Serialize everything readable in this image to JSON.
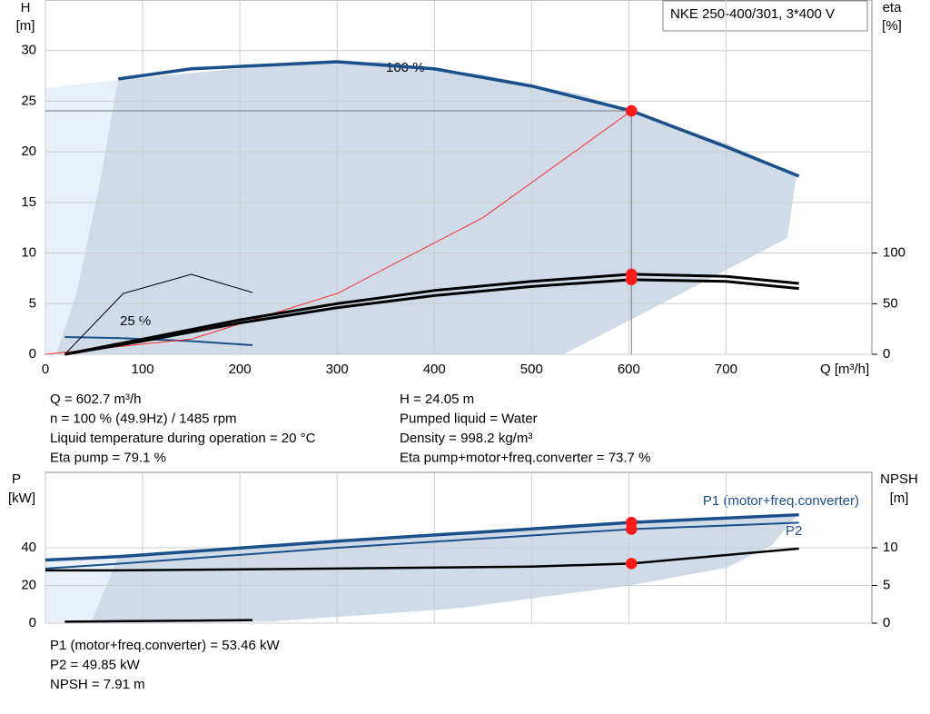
{
  "title": "NKE 250-400/301, 3*400 V",
  "chart_data": [
    {
      "type": "line",
      "ylabel": "H",
      "yunit": "[m]",
      "y2label": "eta",
      "y2unit": "[%]",
      "xlabel": "Q [m³/h]",
      "xlim": [
        0,
        850
      ],
      "xticks": [
        0,
        100,
        200,
        300,
        400,
        500,
        600,
        700
      ],
      "ylim": [
        0,
        35
      ],
      "yticks": [
        0,
        5,
        10,
        15,
        20,
        25,
        30
      ],
      "y2lim": [
        0,
        350
      ],
      "y2ticks": [
        0,
        50,
        100
      ],
      "grid": true,
      "operating_x": 602.7,
      "series": [
        {
          "name": "100 %",
          "color": "#1a4f8a",
          "width": 3.5,
          "x": [
            75,
            150,
            300,
            400,
            500,
            602.7,
            700,
            775
          ],
          "values": [
            27.2,
            28.2,
            28.9,
            28.2,
            26.5,
            24.05,
            20.5,
            17.6
          ]
        },
        {
          "name": "25 %",
          "color": "#1a4f8a",
          "width": 2,
          "x": [
            20,
            75,
            150,
            213
          ],
          "values": [
            1.7,
            1.6,
            1.3,
            0.9
          ]
        },
        {
          "color": "#ff3030",
          "width": 1,
          "x": [
            0,
            150,
            300,
            450,
            602.7
          ],
          "values": [
            0,
            1.5,
            6,
            13.5,
            24.05
          ]
        },
        {
          "color": "#000",
          "width": 3,
          "axis": "y2",
          "x": [
            20,
            100,
            200,
            300,
            400,
            500,
            602.7,
            700,
            775
          ],
          "values": [
            0,
            15,
            34,
            50,
            63,
            72,
            79.1,
            77,
            70
          ]
        },
        {
          "color": "#000",
          "width": 3,
          "axis": "y2",
          "x": [
            20,
            100,
            200,
            300,
            400,
            500,
            602.7,
            700,
            775
          ],
          "values": [
            0,
            13,
            31,
            46,
            58,
            67,
            73.7,
            72,
            65
          ]
        },
        {
          "color": "#000",
          "width": 1,
          "axis": "y2",
          "x": [
            20,
            80,
            150,
            213
          ],
          "values": [
            0,
            60,
            79,
            61
          ]
        }
      ],
      "labels": [
        "100 %",
        "25 %"
      ],
      "info": [
        "Q = 602.7 m³/h",
        "n = 100 % (49.9Hz) / 1485 rpm",
        "Liquid temperature during operation = 20 °C",
        "Eta pump = 79.1 %",
        "H = 24.05 m",
        "Pumped liquid = Water",
        "Density = 998.2 kg/m³",
        "Eta pump+motor+freq.converter = 73.7 %"
      ]
    },
    {
      "type": "line",
      "ylabel": "P",
      "yunit": "[kW]",
      "y2label": "NPSH",
      "y2unit": "[m]",
      "xlim": [
        0,
        850
      ],
      "xticks": [
        0,
        100,
        200,
        300,
        400,
        500,
        600,
        700
      ],
      "ylim": [
        0,
        80
      ],
      "yticks": [
        0,
        20,
        40
      ],
      "y2lim": [
        0,
        20
      ],
      "y2ticks": [
        0,
        5,
        10
      ],
      "grid": true,
      "operating_x": 602.7,
      "series": [
        {
          "name": "P1 (motor+freq.converter)",
          "color": "#1a4f8a",
          "width": 3.5,
          "x": [
            0,
            75,
            300,
            500,
            602.7,
            775
          ],
          "values": [
            33.5,
            35.3,
            43.5,
            50,
            53.46,
            57.5
          ]
        },
        {
          "name": "P2",
          "color": "#1a4f8a",
          "width": 2,
          "x": [
            0,
            75,
            300,
            500,
            602.7,
            775
          ],
          "values": [
            29,
            31.5,
            40,
            46.5,
            49.85,
            53.3
          ]
        },
        {
          "color": "#000",
          "width": 2.5,
          "axis": "y2",
          "x": [
            0,
            75,
            300,
            500,
            602.7,
            775
          ],
          "values": [
            7,
            7,
            7.25,
            7.5,
            7.91,
            9.9
          ]
        },
        {
          "color": "#000",
          "width": 2.5,
          "x": [
            20,
            213
          ],
          "values": [
            0.8,
            1.6
          ]
        }
      ],
      "info": [
        "P1 (motor+freq.converter) = 53.46 kW",
        "P2 = 49.85 kW",
        "NPSH = 7.91 m"
      ]
    }
  ]
}
